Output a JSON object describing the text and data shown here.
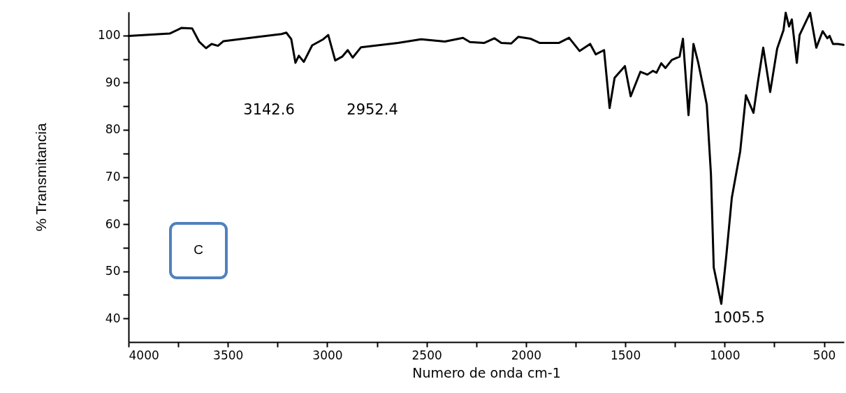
{
  "chart_data": {
    "type": "line",
    "xlabel": "Numero de onda cm-1",
    "ylabel": "% Transmitancia",
    "xlim": [
      4000,
      400
    ],
    "ylim": [
      35,
      105
    ],
    "xticks": [
      4000,
      {
        "value": 3750,
        "label": null
      },
      3500,
      {
        "value": 3250,
        "label": null
      },
      3000,
      {
        "value": 2750,
        "label": null
      },
      2500,
      {
        "value": 2250,
        "label": null
      },
      2000,
      {
        "value": 1750,
        "label": null
      },
      1500,
      {
        "value": 1250,
        "label": null
      },
      1000,
      {
        "value": 750,
        "label": null
      },
      500
    ],
    "yticks": [
      40,
      {
        "value": 45,
        "label": null
      },
      50,
      {
        "value": 55,
        "label": null
      },
      60,
      {
        "value": 65,
        "label": null
      },
      70,
      {
        "value": 75,
        "label": null
      },
      80,
      {
        "value": 85,
        "label": null
      },
      90,
      {
        "value": 95,
        "label": null
      },
      100
    ],
    "grid": false,
    "marker": "none",
    "line_style": "solid",
    "series": [
      {
        "color": "#000000",
        "x": [
          4000,
          3793,
          3733,
          3680,
          3645,
          3610,
          3582,
          3550,
          3522,
          3346,
          3230,
          3206,
          3181,
          3160,
          3143,
          3118,
          3076,
          3020,
          2995,
          2960,
          2925,
          2897,
          2872,
          2830,
          2644,
          2528,
          2408,
          2317,
          2282,
          2211,
          2159,
          2124,
          2074,
          2039,
          1976,
          1930,
          1835,
          1783,
          1730,
          1677,
          1649,
          1607,
          1579,
          1554,
          1502,
          1473,
          1424,
          1389,
          1361,
          1343,
          1319,
          1298,
          1266,
          1227,
          1210,
          1182,
          1157,
          1133,
          1104,
          1090,
          1069,
          1055,
          1017,
          992,
          964,
          922,
          893,
          855,
          834,
          806,
          771,
          736,
          704,
          693,
          676,
          662,
          637,
          623,
          570,
          539,
          507,
          483,
          472,
          455,
          430,
          402
        ],
        "values": [
          99.9,
          100.4,
          101.6,
          101.5,
          98.7,
          97.3,
          98.2,
          97.8,
          98.8,
          99.7,
          100.3,
          100.6,
          99.2,
          94.2,
          95.7,
          94.4,
          97.9,
          99.2,
          100.1,
          94.7,
          95.5,
          96.9,
          95.3,
          97.5,
          98.4,
          99.2,
          98.7,
          99.5,
          98.6,
          98.4,
          99.4,
          98.4,
          98.3,
          99.7,
          99.3,
          98.4,
          98.4,
          99.5,
          96.7,
          98.2,
          96.0,
          96.9,
          84.6,
          91.0,
          93.5,
          87.1,
          92.3,
          91.7,
          92.5,
          92.1,
          94.1,
          93.1,
          94.8,
          95.5,
          99.3,
          83.1,
          98.2,
          94.2,
          88.3,
          85.3,
          70.5,
          50.8,
          43.1,
          53.2,
          65.6,
          75.4,
          87.3,
          83.6,
          89.8,
          97.4,
          88.0,
          97.2,
          101.1,
          104.8,
          101.9,
          103.4,
          94.2,
          100.1,
          104.8,
          97.4,
          100.9,
          99.4,
          99.9,
          98.2,
          98.2,
          98.0
        ]
      }
    ],
    "annotations": [
      "3142.6",
      "2952.4",
      "1005.5",
      "C"
    ]
  }
}
